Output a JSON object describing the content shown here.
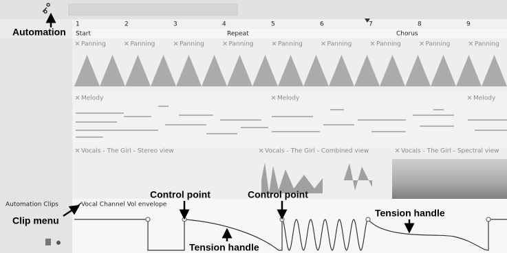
{
  "toolbar": {
    "annotation": "Automation"
  },
  "ruler": {
    "bars": [
      "1",
      "2",
      "3",
      "4",
      "5",
      "6",
      "7",
      "8",
      "9"
    ],
    "markers": [
      "Start",
      "Repeat",
      "Chorus"
    ]
  },
  "tracks": {
    "panning": [
      "Panning",
      "Panning",
      "Panning",
      "Panning",
      "Panning",
      "Panning",
      "Panning",
      "Panning",
      "Panning"
    ],
    "melody": [
      "Melody",
      "Melody",
      "Melody"
    ],
    "vocals": [
      "Vocals - The Girl - Stereo view",
      "Vocals - The Girl - Combined view",
      "Vocals - The Girl - Spectral view"
    ],
    "automation_track": "Automation Clips",
    "automation_clip": "Vocal Channel Vol envelope"
  },
  "annotations": {
    "clip_menu": "Clip menu",
    "control_point_1": "Control point",
    "control_point_2": "Control point",
    "tension_handle_1": "Tension handle",
    "tension_handle_2": "Tension handle"
  }
}
